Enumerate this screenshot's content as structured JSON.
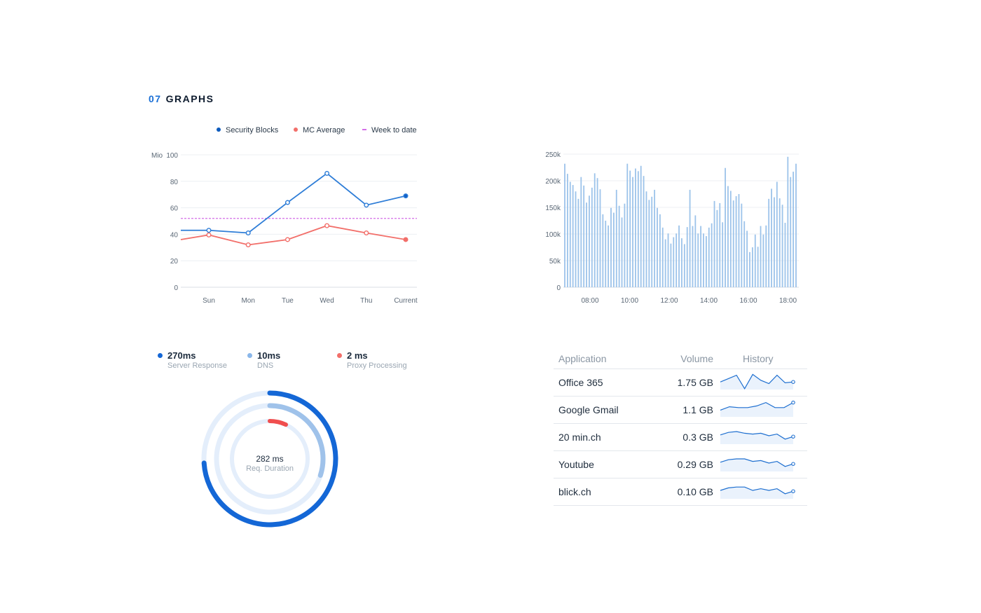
{
  "section": {
    "number": "07",
    "title": "GRAPHS"
  },
  "legend": [
    {
      "label": "Security Blocks",
      "color": "#1f6fd1"
    },
    {
      "label": "MC Average",
      "color": "#f26f6a"
    },
    {
      "label": "Week to date",
      "color": "#d46ee8"
    }
  ],
  "chart_data": [
    {
      "type": "line",
      "categories": [
        "Sun",
        "Mon",
        "Tue",
        "Wed",
        "Thu",
        "Current"
      ],
      "ylabel": "Mio",
      "ylim": [
        0,
        100
      ],
      "yticks": [
        0,
        20,
        40,
        60,
        80,
        100
      ],
      "grid": true,
      "legend_position": "top",
      "series": [
        {
          "name": "Security Blocks",
          "color": "#2e7dd7",
          "values": [
            43,
            41,
            64,
            86,
            62,
            69
          ]
        },
        {
          "name": "MC Average",
          "color": "#f26f6a",
          "values": [
            39.5,
            32,
            36,
            46.5,
            41,
            36
          ]
        },
        {
          "name": "Week to date",
          "color": "#d46ee8",
          "style": "dashed",
          "values": [
            52,
            52,
            52,
            52,
            52,
            52
          ]
        }
      ]
    },
    {
      "type": "bar",
      "xticks": [
        "08:00",
        "10:00",
        "12:00",
        "14:00",
        "16:00",
        "18:00"
      ],
      "yticks": [
        "0",
        "50k",
        "100k",
        "150k",
        "200k",
        "250k"
      ],
      "ylim": [
        0,
        250000
      ],
      "grid": true,
      "color": "#9cc3ea",
      "values": [
        232,
        213,
        198,
        192,
        180,
        166,
        207,
        191,
        159,
        172,
        187,
        214,
        205,
        184,
        137,
        125,
        116,
        149,
        140,
        183,
        153,
        131,
        157,
        232,
        219,
        207,
        223,
        218,
        228,
        209,
        180,
        164,
        170,
        183,
        149,
        137,
        112,
        90,
        101,
        82,
        94,
        101,
        116,
        92,
        81,
        113,
        183,
        115,
        135,
        101,
        115,
        101,
        96,
        112,
        120,
        162,
        145,
        158,
        122,
        224,
        190,
        181,
        163,
        171,
        175,
        157,
        124,
        106,
        66,
        75,
        99,
        76,
        115,
        99,
        116,
        166,
        185,
        169,
        198,
        167,
        155,
        121,
        245,
        207,
        217,
        232
      ]
    },
    {
      "type": "donut",
      "center_value": "282 ms",
      "center_label": "Req. Duration",
      "rings": [
        {
          "value": "270ms",
          "label": "Server Response",
          "color": "#1467d6",
          "track": "#e4eefb",
          "fraction": 0.74
        },
        {
          "value": "10ms",
          "label": "DNS",
          "color": "#9fc2ea",
          "track": "#e4eefb",
          "fraction": 0.3
        },
        {
          "value": "2 ms",
          "label": "Proxy Processing",
          "color": "#f04e4e",
          "track": "#e4eefb",
          "fraction": 0.07
        }
      ]
    }
  ],
  "table": {
    "headers": {
      "application": "Application",
      "volume": "Volume",
      "history": "History"
    },
    "rows": [
      {
        "app": "Office 365",
        "volume": "1.75 GB",
        "spark": [
          11,
          7,
          3,
          19,
          2,
          9,
          13,
          3,
          12,
          11
        ]
      },
      {
        "app": "Google Gmail",
        "volume": "1.1 GB",
        "spark": [
          12,
          8,
          9,
          9,
          7,
          3,
          9,
          9,
          3
        ]
      },
      {
        "app": "20 min.ch",
        "volume": "0.3 GB",
        "spark": [
          9,
          6,
          5,
          7,
          8,
          7,
          10,
          8,
          14,
          11
        ]
      },
      {
        "app": "Youtube",
        "volume": "0.29 GB",
        "spark": [
          9,
          6,
          5,
          5,
          8,
          7,
          10,
          8,
          14,
          11
        ]
      },
      {
        "app": "blick.ch",
        "volume": "0.10 GB",
        "spark": [
          10,
          7,
          6,
          6,
          10,
          8,
          10,
          8,
          14,
          11
        ]
      }
    ]
  }
}
